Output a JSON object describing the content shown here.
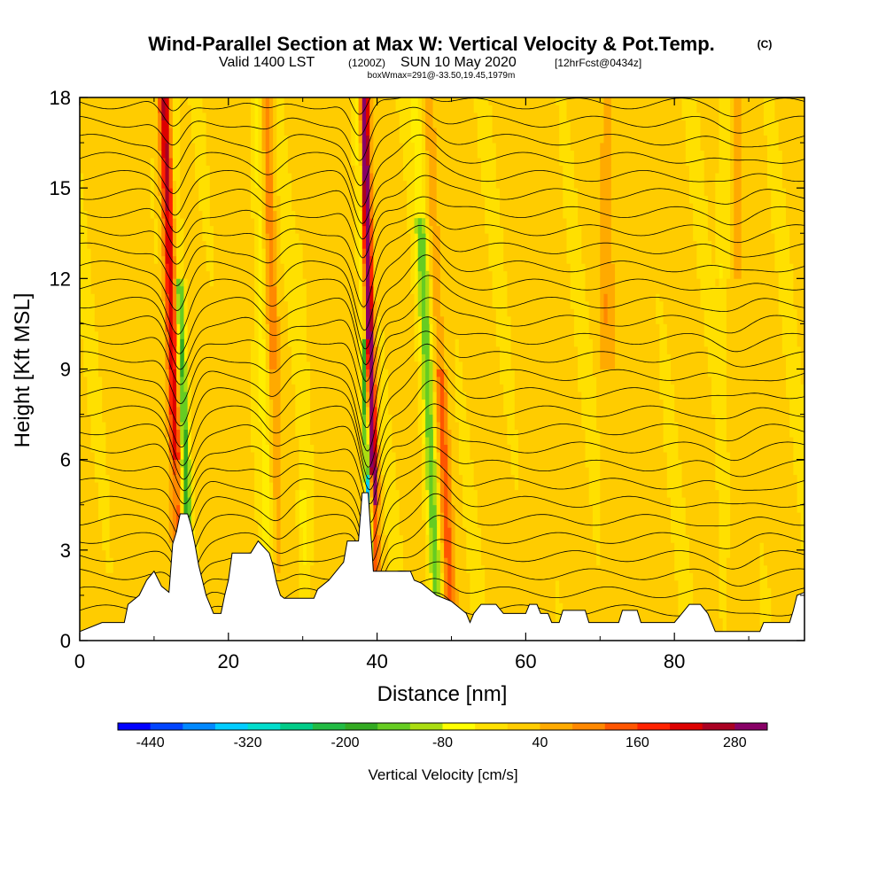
{
  "title": {
    "main": "Wind-Parallel Section at Max W: Vertical Velocity & Pot.Temp.",
    "copyright": "(C)",
    "valid_a": "Valid 1400 LST",
    "valid_b": "(1200Z)",
    "valid_c": "SUN 10 May 2020",
    "valid_d": "[12hrFcst@0434z]",
    "box": "boxWmax=291@-33.50,19.45,1979m"
  },
  "chart_data": {
    "type": "heatmap",
    "xlabel": "Distance [nm]",
    "ylabel": "Height [Kft MSL]",
    "xlim": [
      0,
      97.5
    ],
    "ylim": [
      0,
      18
    ],
    "xticks": [
      "0",
      "20",
      "40",
      "60",
      "80"
    ],
    "xtick_values": [
      0,
      20,
      40,
      60,
      80
    ],
    "yticks": [
      "0",
      "3",
      "6",
      "9",
      "12",
      "15",
      "18"
    ],
    "ytick_values": [
      0,
      3,
      6,
      9,
      12,
      15,
      18
    ],
    "colorbar": {
      "label": "Vertical Velocity [cm/s]",
      "ticks": [
        "-440",
        "-320",
        "-200",
        "-80",
        "40",
        "160",
        "280"
      ],
      "tick_values": [
        -440,
        -320,
        -200,
        -80,
        40,
        160,
        280
      ],
      "min": -480,
      "step": 40,
      "colors": [
        "#0000ff",
        "#0044ff",
        "#0088ff",
        "#00ccff",
        "#00ddcc",
        "#00cc88",
        "#22bb44",
        "#33aa22",
        "#66cc22",
        "#aadd11",
        "#ffff00",
        "#ffe000",
        "#ffcc00",
        "#ffaa00",
        "#ff8800",
        "#ff5500",
        "#ff2200",
        "#dd0000",
        "#aa0022",
        "#880066"
      ]
    },
    "terrain_kft": [
      [
        0,
        0.3
      ],
      [
        3,
        0.6
      ],
      [
        6,
        0.6
      ],
      [
        6.5,
        1.2
      ],
      [
        8,
        1.5
      ],
      [
        9,
        2
      ],
      [
        10,
        2.3
      ],
      [
        11,
        1.8
      ],
      [
        12,
        1.6
      ],
      [
        12.5,
        3.2
      ],
      [
        13,
        3.6
      ],
      [
        13.5,
        4.2
      ],
      [
        14.5,
        4.2
      ],
      [
        15,
        3.8
      ],
      [
        15.5,
        3.2
      ],
      [
        16,
        2.5
      ],
      [
        16.5,
        2.0
      ],
      [
        17,
        1.5
      ],
      [
        17.5,
        1.2
      ],
      [
        18,
        0.9
      ],
      [
        19,
        0.9
      ],
      [
        19.5,
        1.5
      ],
      [
        20,
        2.0
      ],
      [
        20.5,
        2.9
      ],
      [
        23,
        2.9
      ],
      [
        24,
        3.3
      ],
      [
        25.5,
        2.9
      ],
      [
        26,
        2.5
      ],
      [
        26.5,
        1.9
      ],
      [
        27,
        1.5
      ],
      [
        27.5,
        1.4
      ],
      [
        31.5,
        1.4
      ],
      [
        32,
        1.7
      ],
      [
        33.5,
        2.0
      ],
      [
        34.5,
        2.3
      ],
      [
        35.5,
        2.6
      ],
      [
        36,
        3.3
      ],
      [
        37.5,
        3.3
      ],
      [
        38,
        4.9
      ],
      [
        38.8,
        4.9
      ],
      [
        39.5,
        2.3
      ],
      [
        44.5,
        2.3
      ],
      [
        45,
        2.0
      ],
      [
        46,
        1.9
      ],
      [
        47,
        1.7
      ],
      [
        48,
        1.5
      ],
      [
        50,
        1.3
      ],
      [
        51,
        1.1
      ],
      [
        52,
        0.9
      ],
      [
        52.5,
        0.6
      ],
      [
        53,
        0.9
      ],
      [
        54,
        1.2
      ],
      [
        56,
        1.2
      ],
      [
        57,
        0.9
      ],
      [
        60,
        0.9
      ],
      [
        60.5,
        1.2
      ],
      [
        61.5,
        1.2
      ],
      [
        62,
        0.9
      ],
      [
        63,
        0.9
      ],
      [
        63.5,
        0.6
      ],
      [
        64.5,
        0.6
      ],
      [
        65,
        1.0
      ],
      [
        68,
        1.0
      ],
      [
        68.5,
        0.6
      ],
      [
        72.5,
        0.6
      ],
      [
        73,
        1.0
      ],
      [
        75,
        1.0
      ],
      [
        75.5,
        0.6
      ],
      [
        80,
        0.6
      ],
      [
        81,
        0.9
      ],
      [
        82,
        1.2
      ],
      [
        83.5,
        1.2
      ],
      [
        84.5,
        0.9
      ],
      [
        85,
        0.6
      ],
      [
        85.5,
        0.3
      ],
      [
        91.5,
        0.3
      ],
      [
        92,
        0.6
      ],
      [
        95.5,
        0.6
      ],
      [
        96,
        1.0
      ],
      [
        96.5,
        1.5
      ],
      [
        97.5,
        1.6
      ]
    ],
    "updraft_peak_cm_s": 291,
    "theta_isentropes": "black contour lines spaced ~0.6 Kft, displaced downward over terrain peaks near 14 nm and 40 nm"
  }
}
